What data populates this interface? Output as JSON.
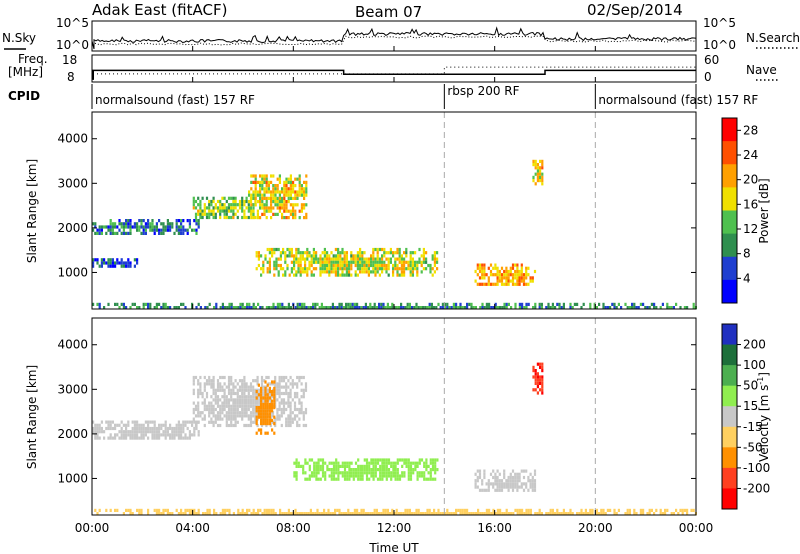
{
  "header": {
    "station": "Adak East (fitACF)",
    "beam": "Beam 07",
    "date": "02/Sep/2014"
  },
  "noise_panel": {
    "left_label": "N.Sky",
    "right_label": "N.Search",
    "left_ticks": [
      "10^5",
      "10^0"
    ],
    "right_ticks": [
      "10^5",
      "10^0"
    ]
  },
  "freq_panel": {
    "left_label_line1": "Freq.",
    "left_label_line2": "[MHz]",
    "left_ticks": [
      "18",
      "8"
    ],
    "right_label": "Nave",
    "right_ticks": [
      "60",
      "0"
    ]
  },
  "cpid_panel": {
    "label": "CPID",
    "segments": [
      {
        "name": "normalsound (fast) 157 RF",
        "start_hour": 0,
        "end_hour": 14
      },
      {
        "name": "rbsp 200 RF",
        "start_hour": 14,
        "end_hour": 20
      },
      {
        "name": "normalsound (fast) 157 RF",
        "start_hour": 20,
        "end_hour": 24
      }
    ]
  },
  "chart_data": [
    {
      "type": "heatmap",
      "quantity": "Power",
      "ylabel": "Slant Range [km]",
      "xlim": [
        0,
        24
      ],
      "ylim": [
        180,
        4600
      ],
      "yticks": [
        1000,
        2000,
        3000,
        4000
      ],
      "colorbar_label": "Power [dB]",
      "colorbar_ticks": [
        "4",
        "8",
        "12",
        "16",
        "20",
        "24",
        "28"
      ],
      "colorbar_range": [
        0,
        30
      ],
      "colors": [
        "#0000ff",
        "#1f3fd0",
        "#2f8f4f",
        "#4fc04f",
        "#f0e000",
        "#ffa000",
        "#ff5000",
        "#ff0000"
      ],
      "regions": [
        {
          "t0": 0.0,
          "t1": 4.2,
          "r0": 1900,
          "r1": 2200,
          "value": 8
        },
        {
          "t0": 0.0,
          "t1": 1.8,
          "r0": 1150,
          "r1": 1320,
          "value": 6
        },
        {
          "t0": 4.0,
          "t1": 6.5,
          "r0": 2200,
          "r1": 2700,
          "value": 14
        },
        {
          "t0": 6.2,
          "t1": 8.5,
          "r0": 2200,
          "r1": 3200,
          "value": 18
        },
        {
          "t0": 6.5,
          "t1": 13.7,
          "r0": 950,
          "r1": 1550,
          "value": 16
        },
        {
          "t0": 15.2,
          "t1": 17.6,
          "r0": 700,
          "r1": 1200,
          "value": 20
        },
        {
          "t0": 17.5,
          "t1": 17.9,
          "r0": 3000,
          "r1": 3600,
          "value": 18
        },
        {
          "t0": 0.0,
          "t1": 24.0,
          "r0": 180,
          "r1": 320,
          "value": 10
        }
      ]
    },
    {
      "type": "heatmap",
      "quantity": "Velocity",
      "ylabel": "Slant Range [km]",
      "xlabel": "Time UT",
      "xlim": [
        0,
        24
      ],
      "ylim": [
        180,
        4600
      ],
      "xticks": [
        "00:00",
        "04:00",
        "08:00",
        "12:00",
        "16:00",
        "20:00",
        "00:00"
      ],
      "yticks": [
        1000,
        2000,
        3000,
        4000
      ],
      "colorbar_label": "Velocity [m s^-1]",
      "colorbar_ticks": [
        "200",
        "100",
        "50",
        "15",
        "-15",
        "-50",
        "-100",
        "-200"
      ],
      "colors": [
        "#2030c0",
        "#1d6f3a",
        "#4caf50",
        "#90ee50",
        "#c8c8c8",
        "#ffd060",
        "#ff9000",
        "#ff4020",
        "#ff0000"
      ],
      "regions": [
        {
          "t0": 0.0,
          "t1": 4.2,
          "r0": 1900,
          "r1": 2300,
          "value": 0
        },
        {
          "t0": 4.0,
          "t1": 8.5,
          "r0": 2200,
          "r1": 3300,
          "value": 0
        },
        {
          "t0": 6.5,
          "t1": 7.2,
          "r0": 2000,
          "r1": 3200,
          "value": -70
        },
        {
          "t0": 8.0,
          "t1": 13.7,
          "r0": 950,
          "r1": 1450,
          "value": 30
        },
        {
          "t0": 15.2,
          "t1": 17.6,
          "r0": 700,
          "r1": 1200,
          "value": 0
        },
        {
          "t0": 17.5,
          "t1": 17.9,
          "r0": 2900,
          "r1": 3600,
          "value": -200
        },
        {
          "t0": 0.0,
          "t1": 24.0,
          "r0": 180,
          "r1": 320,
          "value": -30
        }
      ]
    }
  ]
}
